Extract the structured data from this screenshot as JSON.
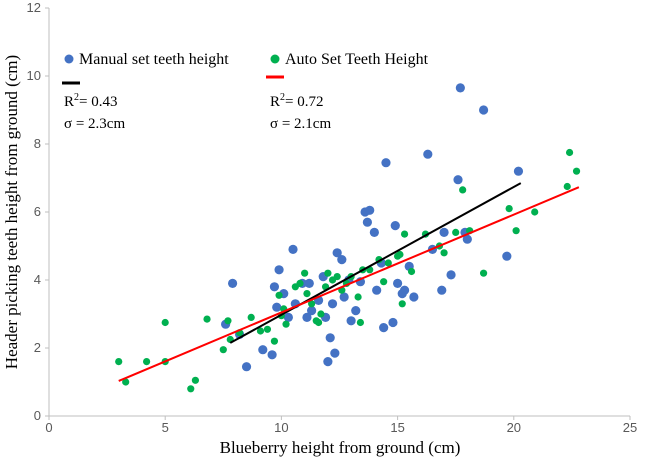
{
  "chart_data": {
    "type": "scatter",
    "xlabel": "Blueberry height from ground (cm)",
    "ylabel": "Header picking teeth height from ground (cm)",
    "xlim": [
      0,
      25
    ],
    "ylim": [
      0,
      12
    ],
    "x_ticks": [
      "0",
      "5",
      "10",
      "15",
      "20",
      "25"
    ],
    "y_ticks": [
      "0",
      "2",
      "4",
      "6",
      "8",
      "10",
      "12"
    ],
    "grid": false,
    "legend_position": "top",
    "series": [
      {
        "name": "Manual set teeth height",
        "color": "#4472C4",
        "stat_r2_base": "R",
        "stat_r2_sup": "2",
        "stat_r2_value": "= 0.43",
        "stat_sigma": "σ = 2.3cm",
        "fit_color": "#000000",
        "fit": {
          "x": [
            7.8,
            20.3
          ],
          "y": [
            2.15,
            6.85
          ]
        },
        "points": [
          [
            7.6,
            2.7
          ],
          [
            7.9,
            3.9
          ],
          [
            8.2,
            2.4
          ],
          [
            8.5,
            1.45
          ],
          [
            9.2,
            1.95
          ],
          [
            9.6,
            1.8
          ],
          [
            9.8,
            3.2
          ],
          [
            9.9,
            4.3
          ],
          [
            10.1,
            3.6
          ],
          [
            10.5,
            4.9
          ],
          [
            10.6,
            3.3
          ],
          [
            10.9,
            3.9
          ],
          [
            11.2,
            3.9
          ],
          [
            11.3,
            3.1
          ],
          [
            11.6,
            3.4
          ],
          [
            11.8,
            4.1
          ],
          [
            11.9,
            2.9
          ],
          [
            12.0,
            1.6
          ],
          [
            12.1,
            2.3
          ],
          [
            12.2,
            3.3
          ],
          [
            12.3,
            1.85
          ],
          [
            12.4,
            4.8
          ],
          [
            12.6,
            4.6
          ],
          [
            12.7,
            3.5
          ],
          [
            13.0,
            2.8
          ],
          [
            13.2,
            3.1
          ],
          [
            13.4,
            3.95
          ],
          [
            13.6,
            6.0
          ],
          [
            13.7,
            5.7
          ],
          [
            13.8,
            6.05
          ],
          [
            14.0,
            5.4
          ],
          [
            14.1,
            3.7
          ],
          [
            14.3,
            4.5
          ],
          [
            14.4,
            2.6
          ],
          [
            14.5,
            7.45
          ],
          [
            14.8,
            2.75
          ],
          [
            14.9,
            5.6
          ],
          [
            15.0,
            3.9
          ],
          [
            15.2,
            3.6
          ],
          [
            15.3,
            3.7
          ],
          [
            15.5,
            4.4
          ],
          [
            15.7,
            3.5
          ],
          [
            16.3,
            7.7
          ],
          [
            16.5,
            4.9
          ],
          [
            16.9,
            3.7
          ],
          [
            17.0,
            5.4
          ],
          [
            17.3,
            4.15
          ],
          [
            17.6,
            6.95
          ],
          [
            17.7,
            9.65
          ],
          [
            17.9,
            5.4
          ],
          [
            18.0,
            5.2
          ],
          [
            18.7,
            9.0
          ],
          [
            19.7,
            4.7
          ],
          [
            20.2,
            7.2
          ],
          [
            9.7,
            3.8
          ],
          [
            11.1,
            2.9
          ],
          [
            12.9,
            4.0
          ],
          [
            10.3,
            2.9
          ]
        ]
      },
      {
        "name": "Auto Set Teeth Height",
        "color": "#00B050",
        "stat_r2_base": "R",
        "stat_r2_sup": "2",
        "stat_r2_value": "= 0.72",
        "stat_sigma": "σ = 2.1cm",
        "fit_color": "#FF0000",
        "fit": {
          "x": [
            3.0,
            22.8
          ],
          "y": [
            1.03,
            6.73
          ]
        },
        "points": [
          [
            3.0,
            1.6
          ],
          [
            3.3,
            1.0
          ],
          [
            4.2,
            1.6
          ],
          [
            5.0,
            1.6
          ],
          [
            5.0,
            2.75
          ],
          [
            6.1,
            0.8
          ],
          [
            6.3,
            1.05
          ],
          [
            6.8,
            2.85
          ],
          [
            7.5,
            1.95
          ],
          [
            7.7,
            2.8
          ],
          [
            7.8,
            2.25
          ],
          [
            8.2,
            2.45
          ],
          [
            8.7,
            2.9
          ],
          [
            9.1,
            2.5
          ],
          [
            9.4,
            2.55
          ],
          [
            9.7,
            2.2
          ],
          [
            10.0,
            2.95
          ],
          [
            10.1,
            3.15
          ],
          [
            10.2,
            2.7
          ],
          [
            10.6,
            3.8
          ],
          [
            10.8,
            3.9
          ],
          [
            11.0,
            4.2
          ],
          [
            11.1,
            3.6
          ],
          [
            11.3,
            3.3
          ],
          [
            11.5,
            2.8
          ],
          [
            11.7,
            3.0
          ],
          [
            11.9,
            3.8
          ],
          [
            12.0,
            4.2
          ],
          [
            12.2,
            4.0
          ],
          [
            12.4,
            4.1
          ],
          [
            12.6,
            3.7
          ],
          [
            12.8,
            3.9
          ],
          [
            13.0,
            4.1
          ],
          [
            13.3,
            3.5
          ],
          [
            13.5,
            4.3
          ],
          [
            13.8,
            4.3
          ],
          [
            14.2,
            4.6
          ],
          [
            14.4,
            3.95
          ],
          [
            14.6,
            4.5
          ],
          [
            15.1,
            4.75
          ],
          [
            15.2,
            3.3
          ],
          [
            15.3,
            5.35
          ],
          [
            15.6,
            4.25
          ],
          [
            16.2,
            5.35
          ],
          [
            16.8,
            5.0
          ],
          [
            17.0,
            4.8
          ],
          [
            17.5,
            5.4
          ],
          [
            17.8,
            6.65
          ],
          [
            18.1,
            5.45
          ],
          [
            18.7,
            4.2
          ],
          [
            19.8,
            6.1
          ],
          [
            20.1,
            5.45
          ],
          [
            20.9,
            6.0
          ],
          [
            22.3,
            6.75
          ],
          [
            22.4,
            7.75
          ],
          [
            22.7,
            7.2
          ],
          [
            9.9,
            3.55
          ],
          [
            11.6,
            2.75
          ],
          [
            15.0,
            4.7
          ],
          [
            13.4,
            2.75
          ]
        ]
      }
    ]
  }
}
